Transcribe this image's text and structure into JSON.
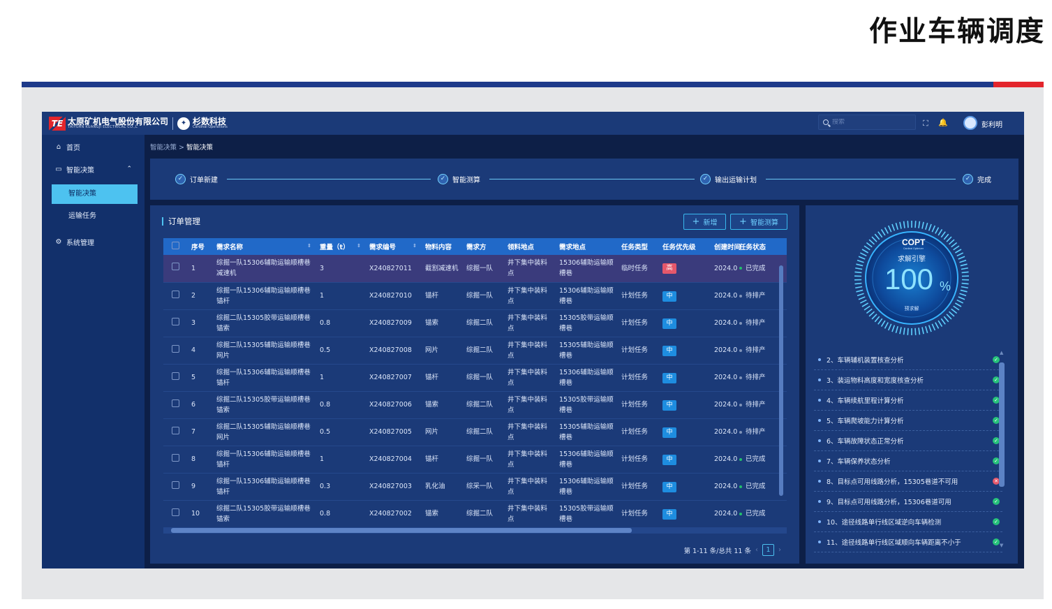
{
  "slide": {
    "title": "作业车辆调度"
  },
  "header": {
    "company_cn": "太原矿机电气股份有限公司",
    "company_en": "TAIYUAN KUANGJI ELECTRICAL CO.,L",
    "company_mark": "TE",
    "partner_cn": "杉数科技",
    "partner_en": "Cardinal Operations",
    "search_placeholder": "搜索",
    "username": "彭利明"
  },
  "sidebar": {
    "home": "首页",
    "decision": "智能决策",
    "sub_items": [
      "智能决策",
      "运输任务"
    ],
    "system": "系统管理"
  },
  "breadcrumb": {
    "parent": "智能决策",
    "current": "智能决策"
  },
  "steps": [
    "订单新建",
    "智能测算",
    "输出运输计划",
    "完成"
  ],
  "order_panel": {
    "title": "订单管理",
    "add_label": "新增",
    "calc_label": "智能测算",
    "columns": [
      "序号",
      "需求名称",
      "重量（t）",
      "需求编号",
      "物料内容",
      "需求方",
      "领料地点",
      "需求地点",
      "任务类型",
      "任务优先级",
      "创建时间",
      "任务状态"
    ],
    "rows": [
      {
        "idx": "1",
        "name": "综掘一队15306辅助运输顺槽巷减速机",
        "weight": "3",
        "code": "X240827011",
        "material": "截割减速机",
        "party": "综掘一队",
        "pickup": "井下集中装料点",
        "dest": "15306辅助运输顺槽巷",
        "type": "临时任务",
        "priority": "高",
        "created": "2024.0",
        "status": "已完成"
      },
      {
        "idx": "2",
        "name": "综掘一队15306辅助运输顺槽巷锚杆",
        "weight": "1",
        "code": "X240827010",
        "material": "锚杆",
        "party": "综掘一队",
        "pickup": "井下集中装料点",
        "dest": "15306辅助运输顺槽巷",
        "type": "计划任务",
        "priority": "中",
        "created": "2024.0",
        "status": "待排产"
      },
      {
        "idx": "3",
        "name": "综掘二队15305胶带运输顺槽巷锚索",
        "weight": "0.8",
        "code": "X240827009",
        "material": "锚索",
        "party": "综掘二队",
        "pickup": "井下集中装料点",
        "dest": "15305胶带运输顺槽巷",
        "type": "计划任务",
        "priority": "中",
        "created": "2024.0",
        "status": "待排产"
      },
      {
        "idx": "4",
        "name": "综掘二队15305辅助运输顺槽巷网片",
        "weight": "0.5",
        "code": "X240827008",
        "material": "网片",
        "party": "综掘二队",
        "pickup": "井下集中装料点",
        "dest": "15305辅助运输顺槽巷",
        "type": "计划任务",
        "priority": "中",
        "created": "2024.0",
        "status": "待排产"
      },
      {
        "idx": "5",
        "name": "综掘一队15306辅助运输顺槽巷锚杆",
        "weight": "1",
        "code": "X240827007",
        "material": "锚杆",
        "party": "综掘一队",
        "pickup": "井下集中装料点",
        "dest": "15306辅助运输顺槽巷",
        "type": "计划任务",
        "priority": "中",
        "created": "2024.0",
        "status": "待排产"
      },
      {
        "idx": "6",
        "name": "综掘二队15305胶带运输顺槽巷锚索",
        "weight": "0.8",
        "code": "X240827006",
        "material": "锚索",
        "party": "综掘二队",
        "pickup": "井下集中装料点",
        "dest": "15305胶带运输顺槽巷",
        "type": "计划任务",
        "priority": "中",
        "created": "2024.0",
        "status": "待排产"
      },
      {
        "idx": "7",
        "name": "综掘二队15305辅助运输顺槽巷网片",
        "weight": "0.5",
        "code": "X240827005",
        "material": "网片",
        "party": "综掘二队",
        "pickup": "井下集中装料点",
        "dest": "15305辅助运输顺槽巷",
        "type": "计划任务",
        "priority": "中",
        "created": "2024.0",
        "status": "待排产"
      },
      {
        "idx": "8",
        "name": "综掘一队15306辅助运输顺槽巷锚杆",
        "weight": "1",
        "code": "X240827004",
        "material": "锚杆",
        "party": "综掘一队",
        "pickup": "井下集中装料点",
        "dest": "15306辅助运输顺槽巷",
        "type": "计划任务",
        "priority": "中",
        "created": "2024.0",
        "status": "已完成"
      },
      {
        "idx": "9",
        "name": "综掘一队15306辅助运输顺槽巷锚杆",
        "weight": "0.3",
        "code": "X240827003",
        "material": "乳化油",
        "party": "综采一队",
        "pickup": "井下集中装料点",
        "dest": "15306辅助运输顺槽巷",
        "type": "计划任务",
        "priority": "中",
        "created": "2024.0",
        "status": "已完成"
      },
      {
        "idx": "10",
        "name": "综掘二队15305胶带运输顺槽巷锚索",
        "weight": "0.8",
        "code": "X240827002",
        "material": "锚索",
        "party": "综掘二队",
        "pickup": "井下集中装料点",
        "dest": "15305胶带运输顺槽巷",
        "type": "计划任务",
        "priority": "中",
        "created": "2024.0",
        "status": "已完成"
      }
    ],
    "pagination_text": "第 1-11 条/总共 11 条",
    "page": "1"
  },
  "right_panel": {
    "brand": "COPT",
    "brand_sub": "Cardinal Optimizer",
    "engine_label": "求解引擎",
    "percent_value": "100",
    "percent_sign": "%",
    "percent_fraction": 1.0,
    "solve_label": "预求解",
    "items": [
      {
        "text": "2、车辆辅机装置核查分析",
        "ok": true
      },
      {
        "text": "3、装运物料高度和宽度核查分析",
        "ok": true
      },
      {
        "text": "4、车辆续航里程计算分析",
        "ok": true
      },
      {
        "text": "5、车辆爬坡能力计算分析",
        "ok": true
      },
      {
        "text": "6、车辆故障状态正常分析",
        "ok": true
      },
      {
        "text": "7、车辆保养状态分析",
        "ok": true
      },
      {
        "text": "8、目标点可用线路分析，15305巷道不可用",
        "ok": false
      },
      {
        "text": "9、目标点可用线路分析，15306巷道可用",
        "ok": true
      },
      {
        "text": "10、途径线路单行线区域逆向车辆检测",
        "ok": true
      },
      {
        "text": "11、途径线路单行线区域顺向车辆距离不小于",
        "ok": true
      }
    ]
  },
  "colors": {
    "bg": "#0d1f47",
    "panel": "#1b3a78",
    "accent": "#4dc2f0",
    "priority_high": "#e5586b",
    "priority_mid": "#1e8de0",
    "status_done": "#22c06b",
    "status_pending": "#7f93b8",
    "ok": "#26c27a",
    "fail": "#e5586b"
  },
  "icons": [
    "home-icon",
    "monitor-icon",
    "gear-icon",
    "search-icon",
    "fullscreen-icon",
    "bell-icon",
    "check-icon",
    "plus-icon"
  ]
}
